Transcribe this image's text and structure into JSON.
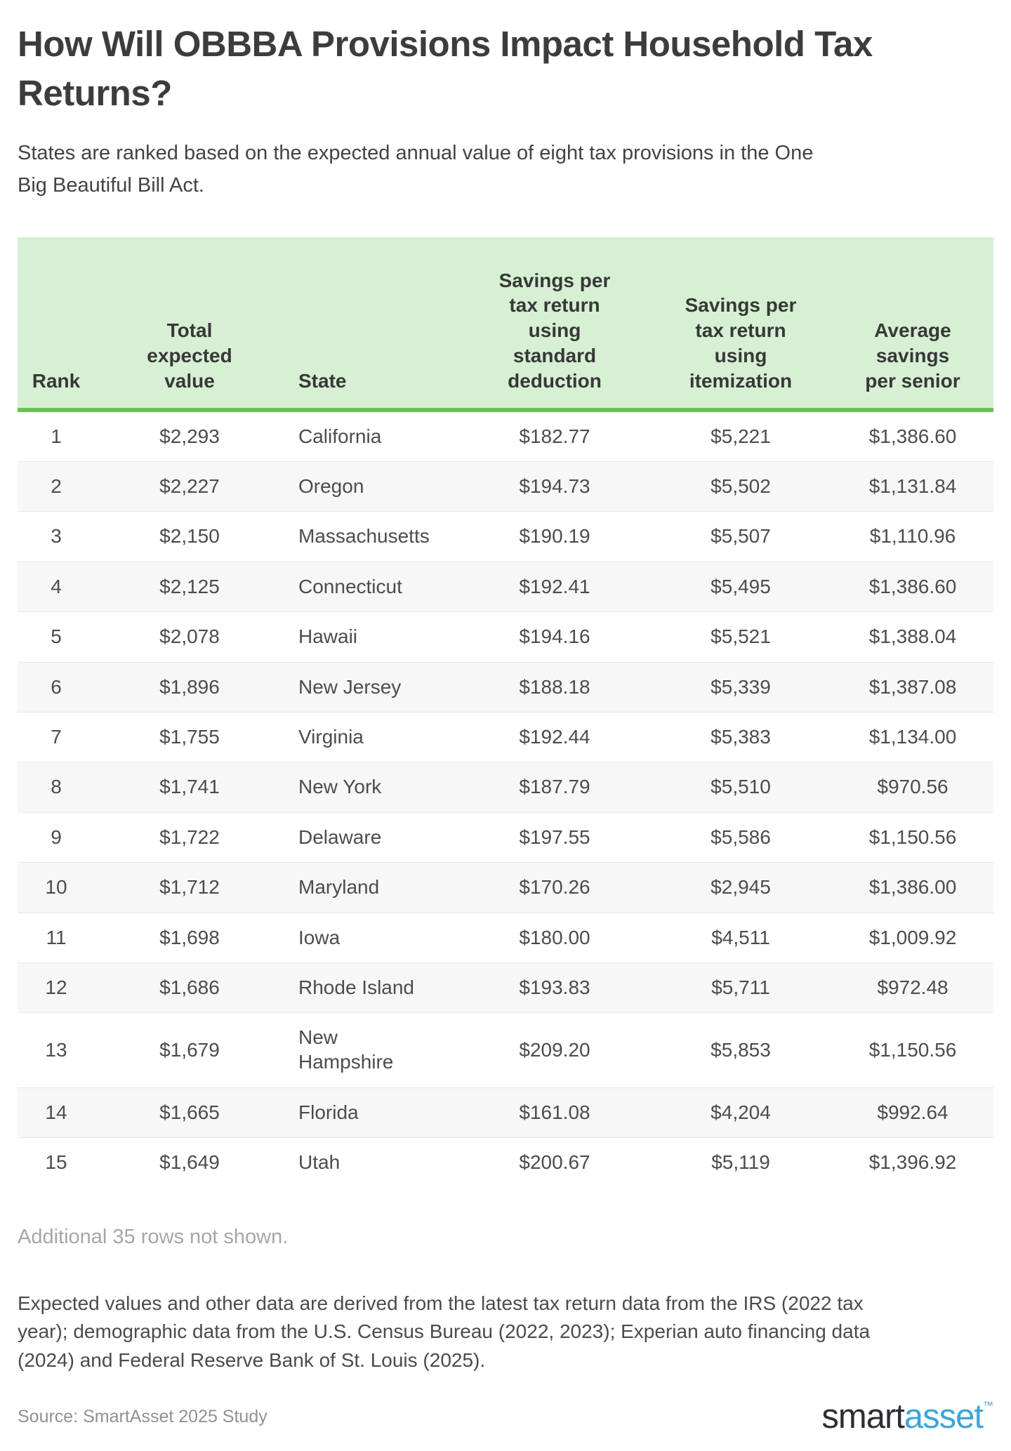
{
  "page": {
    "title": "How Will OBBBA Provisions Impact Household Tax Returns?",
    "subtitle": "States are ranked based on the expected annual value of eight tax provisions in the One Big Beautiful Bill Act.",
    "note": "Additional 35 rows not shown.",
    "methodology": "Expected values and other data are derived from the latest tax return data from the IRS (2022 tax year); demographic data from the U.S. Census Bureau (2022, 2023); Experian auto financing data (2024) and Federal Reserve Bank of St. Louis (2025).",
    "source": "Source: SmartAsset 2025 Study",
    "logo": {
      "smart": "smart",
      "asset": "asset",
      "tm": "™"
    },
    "colors": {
      "header_bg": "#d7f0d4",
      "accent_green": "#6cc155",
      "row_stripe": "#f7f7f7",
      "logo_blue": "#3da4d9",
      "logo_dark": "#2d2d33"
    }
  },
  "chart_data": {
    "type": "table",
    "title": "How Will OBBBA Provisions Impact Household Tax Returns?",
    "columns": [
      "Rank",
      "Total expected value",
      "State",
      "Savings per tax return using standard deduction",
      "Savings per tax return using itemization",
      "Average savings per senior"
    ],
    "rows": [
      {
        "rank": "1",
        "total_expected_value": "$2,293",
        "state": "California",
        "savings_standard_deduction": "$182.77",
        "savings_itemization": "$5,221",
        "avg_savings_per_senior": "$1,386.60"
      },
      {
        "rank": "2",
        "total_expected_value": "$2,227",
        "state": "Oregon",
        "savings_standard_deduction": "$194.73",
        "savings_itemization": "$5,502",
        "avg_savings_per_senior": "$1,131.84"
      },
      {
        "rank": "3",
        "total_expected_value": "$2,150",
        "state": "Massachusetts",
        "savings_standard_deduction": "$190.19",
        "savings_itemization": "$5,507",
        "avg_savings_per_senior": "$1,110.96"
      },
      {
        "rank": "4",
        "total_expected_value": "$2,125",
        "state": "Connecticut",
        "savings_standard_deduction": "$192.41",
        "savings_itemization": "$5,495",
        "avg_savings_per_senior": "$1,386.60"
      },
      {
        "rank": "5",
        "total_expected_value": "$2,078",
        "state": "Hawaii",
        "savings_standard_deduction": "$194.16",
        "savings_itemization": "$5,521",
        "avg_savings_per_senior": "$1,388.04"
      },
      {
        "rank": "6",
        "total_expected_value": "$1,896",
        "state": "New Jersey",
        "savings_standard_deduction": "$188.18",
        "savings_itemization": "$5,339",
        "avg_savings_per_senior": "$1,387.08"
      },
      {
        "rank": "7",
        "total_expected_value": "$1,755",
        "state": "Virginia",
        "savings_standard_deduction": "$192.44",
        "savings_itemization": "$5,383",
        "avg_savings_per_senior": "$1,134.00"
      },
      {
        "rank": "8",
        "total_expected_value": "$1,741",
        "state": "New York",
        "savings_standard_deduction": "$187.79",
        "savings_itemization": "$5,510",
        "avg_savings_per_senior": "$970.56"
      },
      {
        "rank": "9",
        "total_expected_value": "$1,722",
        "state": "Delaware",
        "savings_standard_deduction": "$197.55",
        "savings_itemization": "$5,586",
        "avg_savings_per_senior": "$1,150.56"
      },
      {
        "rank": "10",
        "total_expected_value": "$1,712",
        "state": "Maryland",
        "savings_standard_deduction": "$170.26",
        "savings_itemization": "$2,945",
        "avg_savings_per_senior": "$1,386.00"
      },
      {
        "rank": "11",
        "total_expected_value": "$1,698",
        "state": "Iowa",
        "savings_standard_deduction": "$180.00",
        "savings_itemization": "$4,511",
        "avg_savings_per_senior": "$1,009.92"
      },
      {
        "rank": "12",
        "total_expected_value": "$1,686",
        "state": "Rhode Island",
        "savings_standard_deduction": "$193.83",
        "savings_itemization": "$5,711",
        "avg_savings_per_senior": "$972.48"
      },
      {
        "rank": "13",
        "total_expected_value": "$1,679",
        "state": "New Hampshire",
        "savings_standard_deduction": "$209.20",
        "savings_itemization": "$5,853",
        "avg_savings_per_senior": "$1,150.56"
      },
      {
        "rank": "14",
        "total_expected_value": "$1,665",
        "state": "Florida",
        "savings_standard_deduction": "$161.08",
        "savings_itemization": "$4,204",
        "avg_savings_per_senior": "$992.64"
      },
      {
        "rank": "15",
        "total_expected_value": "$1,649",
        "state": "Utah",
        "savings_standard_deduction": "$200.67",
        "savings_itemization": "$5,119",
        "avg_savings_per_senior": "$1,396.92"
      }
    ]
  }
}
